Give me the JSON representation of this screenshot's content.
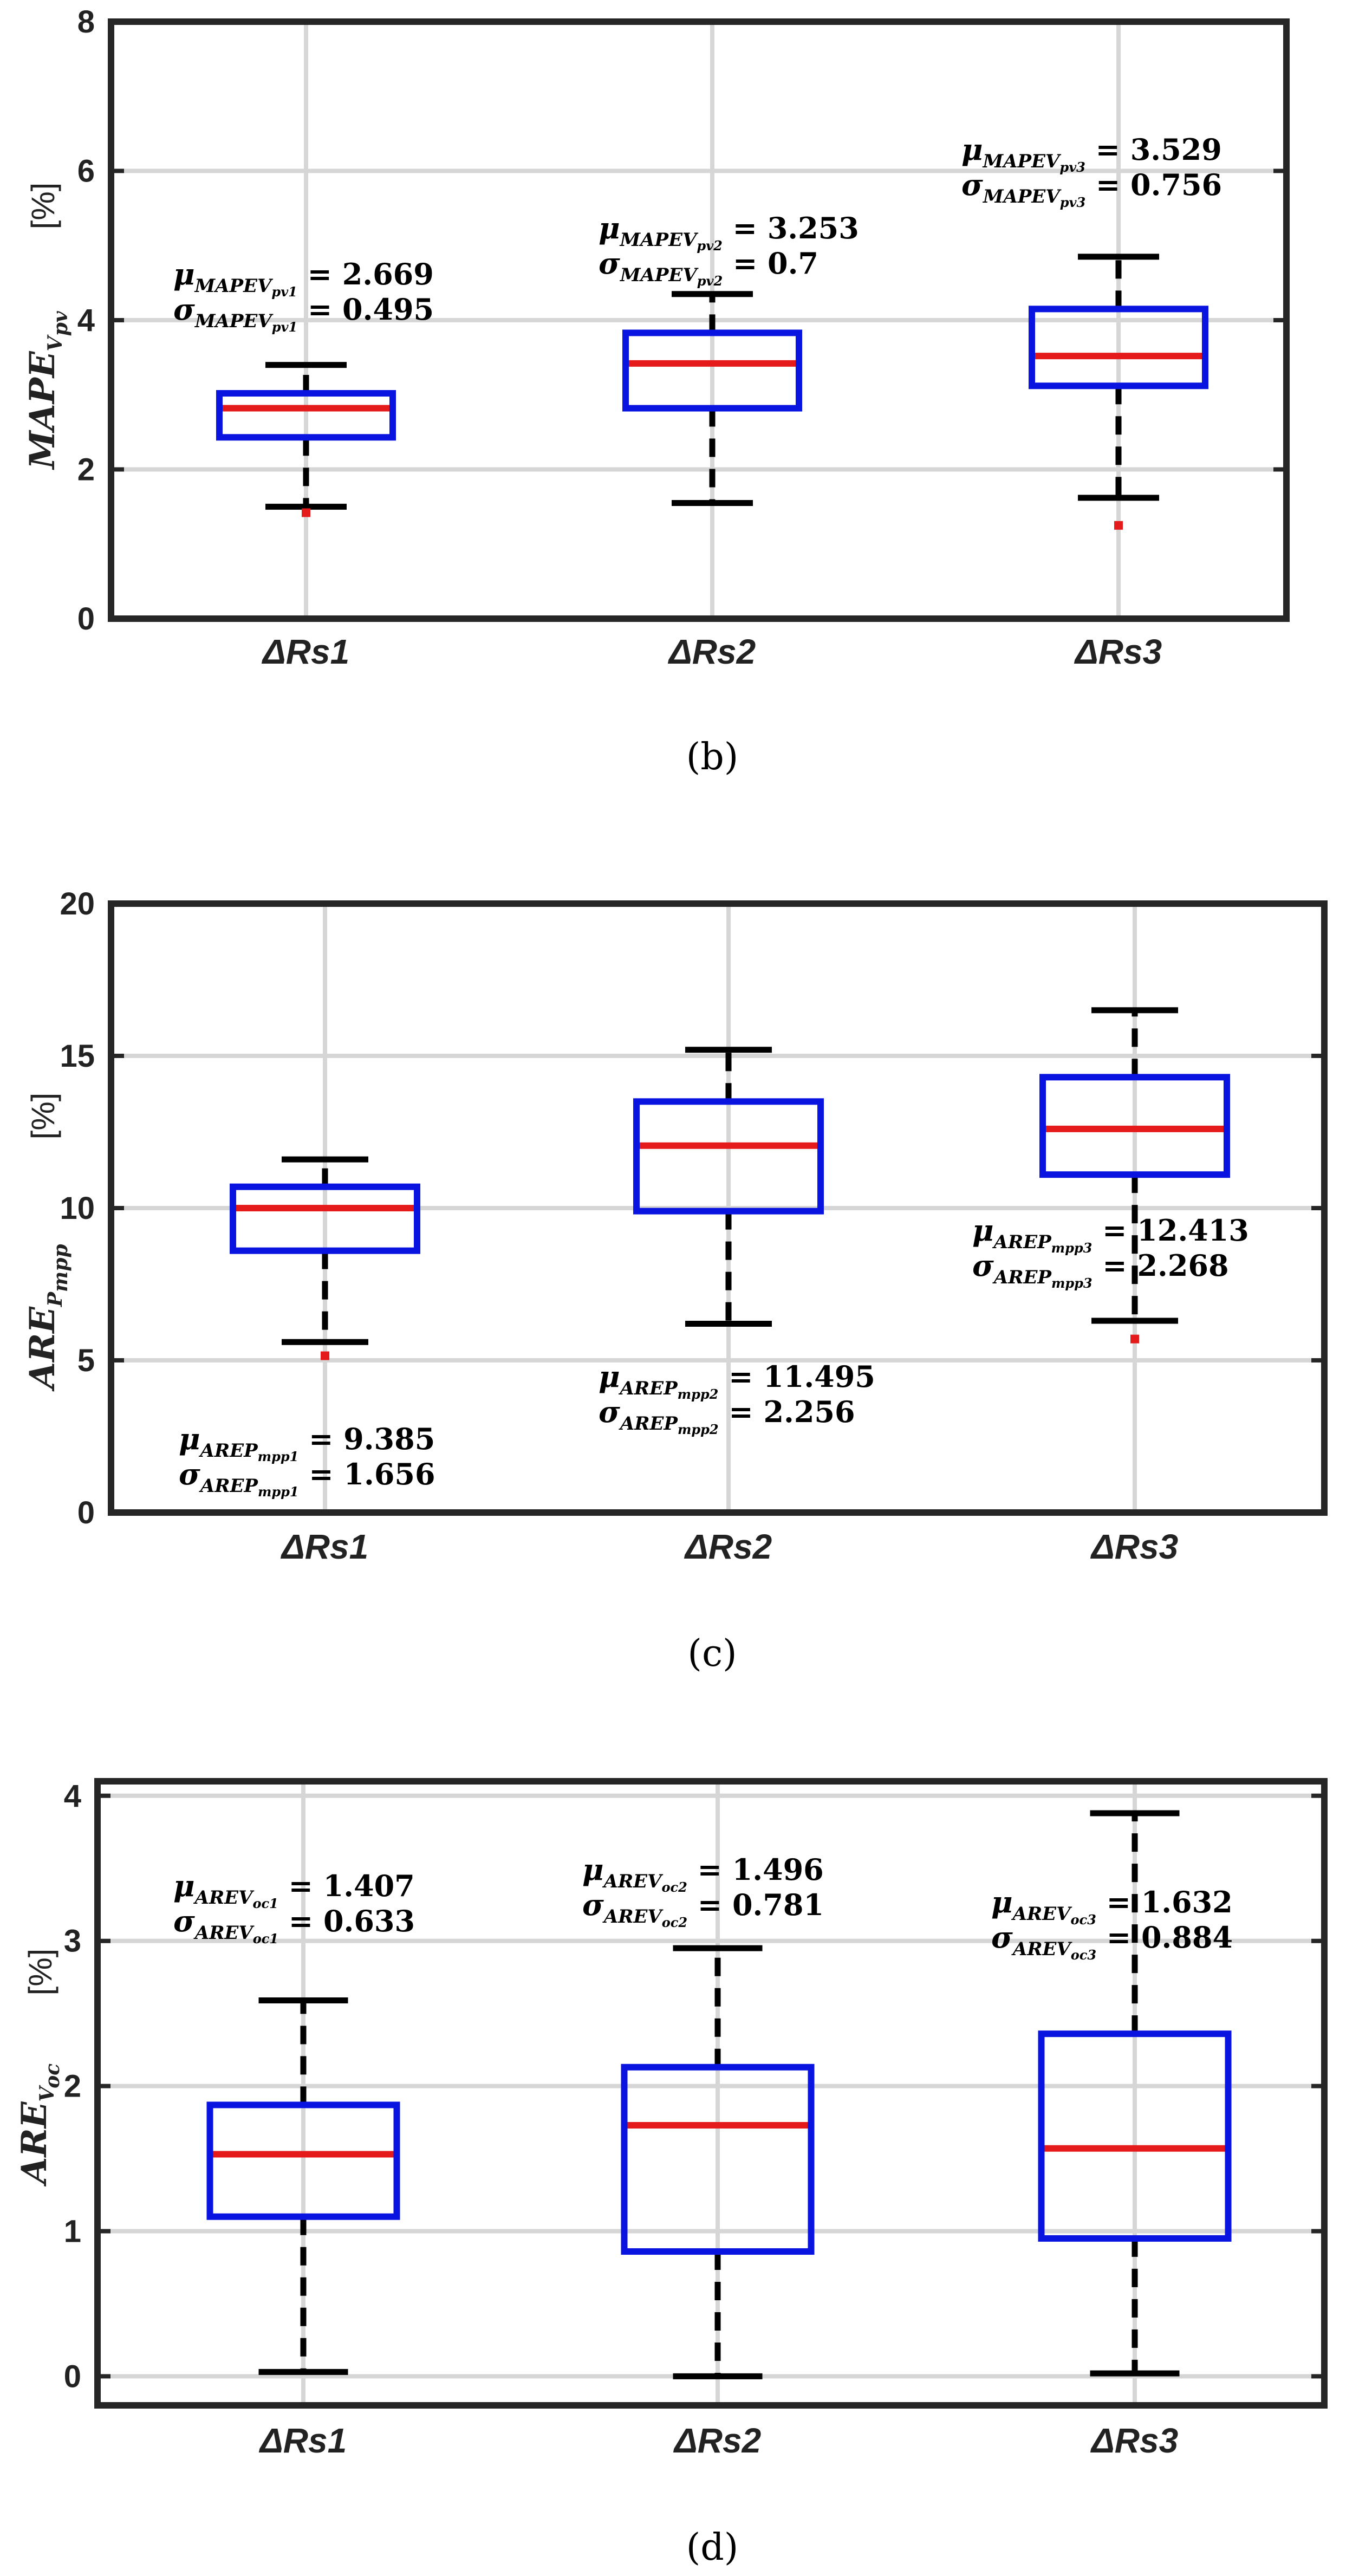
{
  "colors": {
    "box": "#0a14e0",
    "median": "#e51a1a",
    "whisker": "#000000",
    "outlier": "#e51a1a",
    "grid": "#d6d6d6",
    "axis": "#262626"
  },
  "chart_data": [
    {
      "type": "box",
      "caption": "(b)",
      "ylabel": {
        "main": "MAPE",
        "sub": "V",
        "subsub": "pv",
        "unit": "[%]"
      },
      "ylim": [
        0,
        8
      ],
      "yticks": [
        0,
        2,
        4,
        6,
        8
      ],
      "categories": [
        "ΔRs1",
        "ΔRs2",
        "ΔRs3"
      ],
      "boxes": [
        {
          "lower_whisker": 1.5,
          "q1": 2.43,
          "median": 2.82,
          "q3": 3.02,
          "upper_whisker": 3.4,
          "outliers": [
            1.42
          ]
        },
        {
          "lower_whisker": 1.55,
          "q1": 2.82,
          "median": 3.42,
          "q3": 3.83,
          "upper_whisker": 4.35,
          "outliers": []
        },
        {
          "lower_whisker": 1.62,
          "q1": 3.12,
          "median": 3.52,
          "q3": 4.15,
          "upper_whisker": 4.85,
          "outliers": [
            1.25
          ]
        }
      ],
      "annotations": [
        {
          "mu_sym": "μ",
          "sigma_sym": "σ",
          "name": "MAPE",
          "sub": "V",
          "subsub": "pv1",
          "mean_text": " = 2.669",
          "std_text": " = 0.495"
        },
        {
          "mu_sym": "μ",
          "sigma_sym": "σ",
          "name": "MAPE",
          "sub": "V",
          "subsub": "pv2",
          "mean_text": " = 3.253",
          "std_text": " = 0.7"
        },
        {
          "mu_sym": "μ",
          "sigma_sym": "σ",
          "name": "MAPE",
          "sub": "V",
          "subsub": "pv3",
          "mean_text": " = 3.529",
          "std_text": " = 0.756"
        }
      ],
      "grid": true
    },
    {
      "type": "box",
      "caption": "(c)",
      "ylabel": {
        "main": "ARE",
        "sub": "P",
        "subsub": "mpp",
        "unit": "[%]"
      },
      "ylim": [
        0,
        20
      ],
      "yticks": [
        0,
        5,
        10,
        15,
        20
      ],
      "categories": [
        "ΔRs1",
        "ΔRs2",
        "ΔRs3"
      ],
      "boxes": [
        {
          "lower_whisker": 5.6,
          "q1": 8.6,
          "median": 10.0,
          "q3": 10.7,
          "upper_whisker": 11.6,
          "outliers": [
            5.15
          ]
        },
        {
          "lower_whisker": 6.2,
          "q1": 9.9,
          "median": 12.05,
          "q3": 13.5,
          "upper_whisker": 15.2,
          "outliers": []
        },
        {
          "lower_whisker": 6.3,
          "q1": 11.1,
          "median": 12.6,
          "q3": 14.3,
          "upper_whisker": 16.5,
          "outliers": [
            5.7
          ]
        }
      ],
      "annotations": [
        {
          "mu_sym": "μ",
          "sigma_sym": "σ",
          "name": "ARE",
          "sub": "P",
          "subsub": "mpp1",
          "mean_text": " = 9.385",
          "std_text": " = 1.656"
        },
        {
          "mu_sym": "μ",
          "sigma_sym": "σ",
          "name": "ARE",
          "sub": "P",
          "subsub": "mpp2",
          "mean_text": " = 11.495",
          "std_text": " = 2.256"
        },
        {
          "mu_sym": "μ",
          "sigma_sym": "σ",
          "name": "ARE",
          "sub": "P",
          "subsub": "mpp3",
          "mean_text": " = 12.413",
          "std_text": " = 2.268"
        }
      ],
      "grid": true
    },
    {
      "type": "box",
      "caption": "(d)",
      "ylabel": {
        "main": "ARE",
        "sub": "V",
        "subsub": "oc",
        "unit": "[%]"
      },
      "ylim": [
        -0.2,
        4.1
      ],
      "yticks": [
        0,
        1,
        2,
        3,
        4
      ],
      "categories": [
        "ΔRs1",
        "ΔRs2",
        "ΔRs3"
      ],
      "boxes": [
        {
          "lower_whisker": 0.03,
          "q1": 1.1,
          "median": 1.53,
          "q3": 1.87,
          "upper_whisker": 2.59,
          "outliers": []
        },
        {
          "lower_whisker": 0.0,
          "q1": 0.86,
          "median": 1.73,
          "q3": 2.13,
          "upper_whisker": 2.95,
          "outliers": []
        },
        {
          "lower_whisker": 0.02,
          "q1": 0.95,
          "median": 1.57,
          "q3": 2.36,
          "upper_whisker": 3.88,
          "outliers": []
        }
      ],
      "annotations": [
        {
          "mu_sym": "μ",
          "sigma_sym": "σ",
          "name": "ARE",
          "sub": "V",
          "subsub": "oc1",
          "mean_text": " = 1.407",
          "std_text": " = 0.633"
        },
        {
          "mu_sym": "μ",
          "sigma_sym": "σ",
          "name": "ARE",
          "sub": "V",
          "subsub": "oc2",
          "mean_text": " = 1.496",
          "std_text": " = 0.781"
        },
        {
          "mu_sym": "μ",
          "sigma_sym": "σ",
          "name": "ARE",
          "sub": "V",
          "subsub": "oc3",
          "mean_text": " = 1.632",
          "std_text": " = 0.884"
        }
      ],
      "grid": true
    }
  ]
}
